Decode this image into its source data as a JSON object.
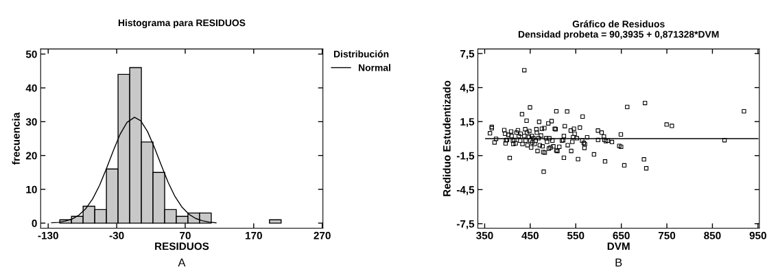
{
  "chart_data": [
    {
      "type": "histogram",
      "title": "Histograma para RESIDUOS",
      "xlabel": "RESIDUOS",
      "ylabel": "frecuencia",
      "annotations": [
        "A"
      ],
      "bins": [
        -113,
        -96,
        -79,
        -62,
        -45,
        -28,
        -11,
        6,
        23,
        40,
        57,
        74,
        91,
        108,
        125,
        142,
        159,
        176,
        193,
        210
      ],
      "values": [
        1,
        2,
        5,
        4,
        16,
        44,
        46,
        24,
        15,
        4,
        2,
        3,
        3,
        0,
        0,
        0,
        0,
        0,
        1
      ],
      "color": "#c8c8c8",
      "series": [
        {
          "type": "line",
          "name": "Normal",
          "color": "#000000",
          "x": [
            -125,
            -115,
            -105,
            -95,
            -85,
            -75,
            -65,
            -55,
            -45,
            -35,
            -25,
            -15,
            -4,
            5,
            15,
            25,
            35,
            45,
            55,
            65,
            75,
            85,
            95,
            105,
            115
          ],
          "values": [
            0.1,
            0.2,
            0.6,
            1.2,
            2.4,
            4.3,
            7.2,
            11.2,
            16.1,
            21.4,
            26.3,
            29.8,
            31.3,
            30.3,
            27.1,
            22.4,
            17.2,
            12.1,
            7.9,
            4.8,
            2.7,
            1.4,
            0.7,
            0.3,
            0.1
          ]
        }
      ],
      "legend": "top right",
      "legend_title": "Distribución",
      "xlim": [
        -141,
        271
      ],
      "ylim": [
        -1.5,
        51.5
      ],
      "xticks": [
        -130,
        -30,
        70,
        170,
        270
      ],
      "yticks": [
        0,
        10,
        20,
        30,
        40,
        50
      ],
      "grid": false
    },
    {
      "type": "scatter",
      "title": "Gráfico de Residuos",
      "subtitle": "Densidad probeta = 90,3935 + 0,871328*DVM",
      "xlabel": "DVM",
      "ylabel": "Rediduo Estudentizado",
      "annotations": [
        "B"
      ],
      "series": [
        {
          "type": "scatter",
          "color": "#000000",
          "marker": "square",
          "x": [
            361.6,
            365.6,
            365.6,
            371.6,
            375,
            405,
            393,
            395,
            396,
            397,
            399,
            402,
            408,
            409,
            412,
            413,
            415,
            418,
            420,
            423,
            425,
            428,
            429,
            432,
            433,
            437,
            437,
            439,
            440,
            442,
            443,
            444,
            447,
            448,
            449.5,
            450.5,
            452,
            453.5,
            454.5,
            457,
            459.5,
            462,
            463.5,
            464.5,
            466,
            468,
            469.6,
            471,
            473.6,
            475.6,
            477,
            478.6,
            479.6,
            481,
            482,
            484.7,
            487,
            489.7,
            491,
            492,
            494.7,
            497,
            498.7,
            500.8,
            503.8,
            505.8,
            507.3,
            507.3,
            509.8,
            513.8,
            519.8,
            522.4,
            523.9,
            523.9,
            525.9,
            531,
            532.4,
            539,
            540,
            542.5,
            544,
            546,
            547.5,
            552.5,
            555,
            559,
            564,
            565,
            567.6,
            569,
            570,
            575,
            590,
            598.7,
            599,
            606.8,
            611.8,
            612.8,
            614.3,
            616.3,
            620.3,
            629.4,
            645.5,
            649,
            649.5,
            656.5,
            663,
            699.7,
            702,
            704.8,
            749.5,
            761,
            876.6,
            919.3
          ],
          "values": [
            0.47,
            1.03,
            0.91,
            -0.34,
            -0.02,
            -1.71,
            0.75,
            0.43,
            -0.42,
            -0.14,
            -0.12,
            0.33,
            0.63,
            0.23,
            -0.18,
            -0.48,
            -0.12,
            -0.42,
            0.53,
            0.73,
            0.23,
            -0.18,
            0.43,
            2.15,
            -0.48,
            6.03,
            0.23,
            0.83,
            -0.18,
            1.58,
            0.53,
            -0.58,
            0.13,
            0.67,
            2.75,
            -0.18,
            -0.78,
            0.23,
            -0.34,
            0.03,
            -0.48,
            -0.18,
            0.83,
            0.53,
            -1.09,
            0.03,
            1.48,
            -0.58,
            0.27,
            0.87,
            -0.68,
            -1.19,
            -2.92,
            0.93,
            -1.23,
            0.03,
            -0.28,
            1.34,
            -0.88,
            0.03,
            -0.78,
            1.54,
            -0.18,
            -0.68,
            0.87,
            0.83,
            2.41,
            -1.05,
            -1.09,
            -0.72,
            -0.18,
            -0.14,
            0.23,
            -1.69,
            1.1,
            2.39,
            -0.58,
            0.71,
            -1.09,
            -0.28,
            0.13,
            0.87,
            0.43,
            0.03,
            -1.81,
            0.97,
            -0.18,
            1.94,
            -0.38,
            -0.82,
            -0.48,
            0.11,
            -1.39,
            0.71,
            -0.12,
            0.53,
            0.19,
            -0.12,
            -2.01,
            -0.22,
            -0.18,
            -0.3,
            -0.64,
            0.37,
            -0.72,
            -2.36,
            2.79,
            -1.83,
            3.14,
            -2.62,
            1.24,
            1.12,
            -0.14,
            2.41
          ]
        },
        {
          "type": "line",
          "color": "#000000",
          "marker": "none",
          "x": [
            352,
            950
          ],
          "values": [
            0,
            0
          ]
        }
      ],
      "xlim": [
        335,
        953
      ],
      "ylim": [
        -7.9,
        7.9
      ],
      "xticks": [
        350,
        450,
        550,
        650,
        750,
        850,
        950
      ],
      "yticks": [
        {
          "value": -7.5,
          "label": "-7,5"
        },
        {
          "value": -4.5,
          "label": "-4,5"
        },
        {
          "value": -1.5,
          "label": "-1,5"
        },
        {
          "value": 1.5,
          "label": "1,5"
        },
        {
          "value": 4.5,
          "label": "4,5"
        },
        {
          "value": 7.5,
          "label": "7,5"
        }
      ],
      "grid": false
    }
  ]
}
